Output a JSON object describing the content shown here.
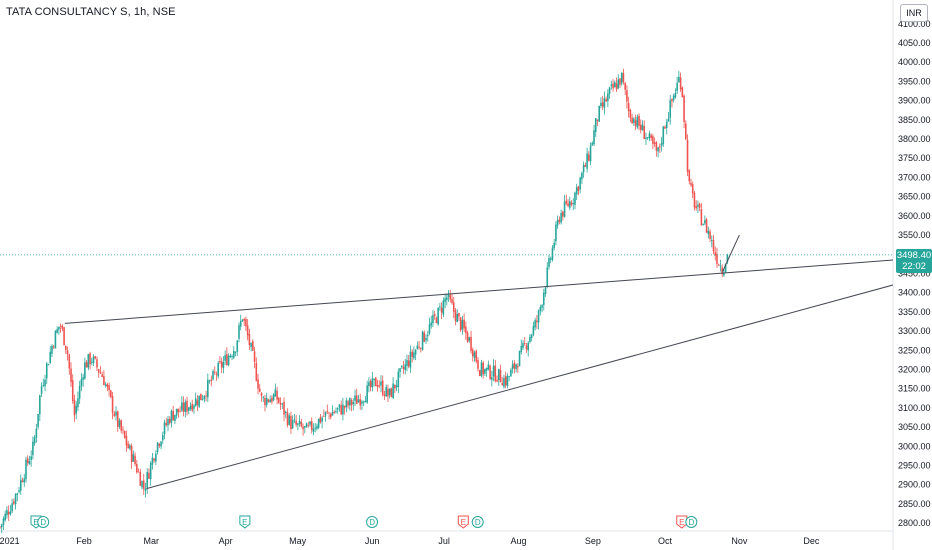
{
  "header": {
    "symbol_line": "TATA CONSULTANCY S, 1h, NSE",
    "currency": "INR"
  },
  "last_price": {
    "value": 3498.4,
    "label": "3498.40",
    "countdown": "22:02"
  },
  "colors": {
    "up": "#26a69a",
    "down": "#ef5350",
    "trendline": "#434651",
    "last_price_line": "#26a69a",
    "axis_text": "#131722",
    "earnings_badge": "#26a69a",
    "earnings_badge_late": "#ef5350",
    "dividend_badge": "#26a69a"
  },
  "chart_data": {
    "type": "candlestick",
    "title": "TATA CONSULTANCY S, 1h, NSE",
    "y_axis": {
      "ticks": [
        "4100.00",
        "4050.00",
        "4000.00",
        "3950.00",
        "3900.00",
        "3850.00",
        "3800.00",
        "3750.00",
        "3700.00",
        "3650.00",
        "3600.00",
        "3550.00",
        "3500.00",
        "3450.00",
        "3400.00",
        "3350.00",
        "3300.00",
        "3250.00",
        "3200.00",
        "3150.00",
        "3100.00",
        "3050.00",
        "3000.00",
        "2950.00",
        "2900.00",
        "2850.00",
        "2800.00"
      ],
      "range": [
        2790,
        4115
      ],
      "unit": "INR"
    },
    "x_axis": {
      "ticks": [
        "2021",
        "Feb",
        "Mar",
        "Apr",
        "May",
        "Jun",
        "Jul",
        "Aug",
        "Sep",
        "Oct",
        "Nov",
        "Dec"
      ],
      "range": [
        "2020-12-28",
        "2022-01-04"
      ]
    },
    "price_path": [
      [
        "2020-12-28",
        2790
      ],
      [
        "2021-01-04",
        2880
      ],
      [
        "2021-01-08",
        2950
      ],
      [
        "2021-01-11",
        3000
      ],
      [
        "2021-01-14",
        3150
      ],
      [
        "2021-01-19",
        3270
      ],
      [
        "2021-01-22",
        3320
      ],
      [
        "2021-01-25",
        3250
      ],
      [
        "2021-01-28",
        3080
      ],
      [
        "2021-02-01",
        3210
      ],
      [
        "2021-02-04",
        3230
      ],
      [
        "2021-02-09",
        3180
      ],
      [
        "2021-02-15",
        3060
      ],
      [
        "2021-02-22",
        2960
      ],
      [
        "2021-02-26",
        2890
      ],
      [
        "2021-03-03",
        3000
      ],
      [
        "2021-03-09",
        3080
      ],
      [
        "2021-03-15",
        3100
      ],
      [
        "2021-03-22",
        3130
      ],
      [
        "2021-03-29",
        3200
      ],
      [
        "2021-04-05",
        3260
      ],
      [
        "2021-04-08",
        3340
      ],
      [
        "2021-04-12",
        3240
      ],
      [
        "2021-04-16",
        3120
      ],
      [
        "2021-04-22",
        3130
      ],
      [
        "2021-04-28",
        3060
      ],
      [
        "2021-05-05",
        3040
      ],
      [
        "2021-05-12",
        3080
      ],
      [
        "2021-05-20",
        3100
      ],
      [
        "2021-05-28",
        3130
      ],
      [
        "2021-06-03",
        3170
      ],
      [
        "2021-06-08",
        3130
      ],
      [
        "2021-06-14",
        3200
      ],
      [
        "2021-06-18",
        3240
      ],
      [
        "2021-06-24",
        3300
      ],
      [
        "2021-06-29",
        3350
      ],
      [
        "2021-07-02",
        3390
      ],
      [
        "2021-07-06",
        3340
      ],
      [
        "2021-07-12",
        3270
      ],
      [
        "2021-07-16",
        3200
      ],
      [
        "2021-07-22",
        3190
      ],
      [
        "2021-07-27",
        3170
      ],
      [
        "2021-08-02",
        3240
      ],
      [
        "2021-08-09",
        3330
      ],
      [
        "2021-08-13",
        3450
      ],
      [
        "2021-08-18",
        3600
      ],
      [
        "2021-08-24",
        3650
      ],
      [
        "2021-08-30",
        3750
      ],
      [
        "2021-09-03",
        3860
      ],
      [
        "2021-09-08",
        3920
      ],
      [
        "2021-09-13",
        3960
      ],
      [
        "2021-09-16",
        3870
      ],
      [
        "2021-09-22",
        3820
      ],
      [
        "2021-09-28",
        3760
      ],
      [
        "2021-10-01",
        3840
      ],
      [
        "2021-10-04",
        3900
      ],
      [
        "2021-10-07",
        3960
      ],
      [
        "2021-10-08",
        3940
      ],
      [
        "2021-10-11",
        3680
      ],
      [
        "2021-10-14",
        3620
      ],
      [
        "2021-10-19",
        3560
      ],
      [
        "2021-10-22",
        3500
      ],
      [
        "2021-10-25",
        3460
      ],
      [
        "2021-10-27",
        3498.4
      ]
    ],
    "trendlines": [
      {
        "from": [
          "2021-01-24",
          3320
        ],
        "to": [
          "2022-01-04",
          3485
        ]
      },
      {
        "from": [
          "2021-02-27",
          2890
        ],
        "to": [
          "2022-01-04",
          3420
        ]
      },
      {
        "from": [
          "2021-10-25",
          3455
        ],
        "to": [
          "2021-11-01",
          3550
        ]
      }
    ],
    "events": [
      {
        "type": "E",
        "date": "2021-01-12"
      },
      {
        "type": "D",
        "date": "2021-01-15"
      },
      {
        "type": "E",
        "date": "2021-04-09"
      },
      {
        "type": "D",
        "date": "2021-06-01"
      },
      {
        "type": "E",
        "date": "2021-07-09",
        "late": true
      },
      {
        "type": "D",
        "date": "2021-07-15"
      },
      {
        "type": "E",
        "date": "2021-10-08",
        "late": true
      },
      {
        "type": "D",
        "date": "2021-10-12"
      }
    ]
  }
}
